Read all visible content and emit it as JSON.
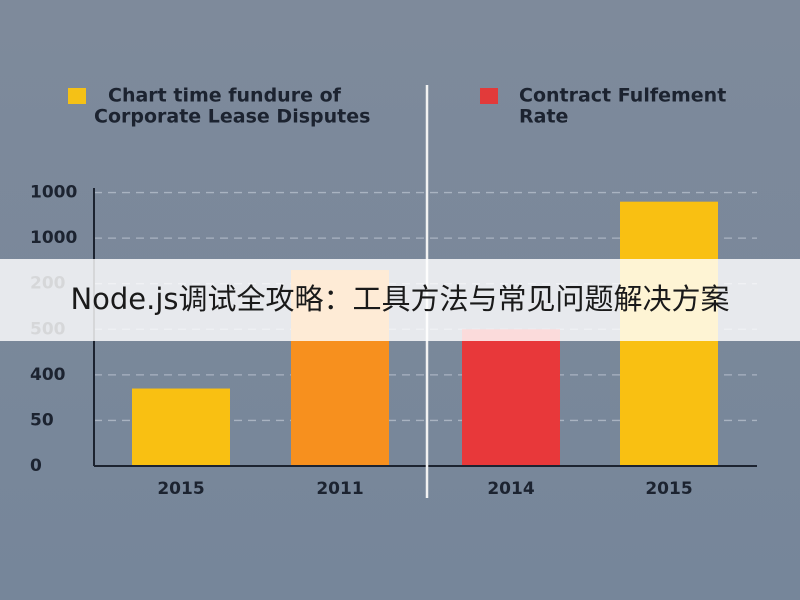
{
  "chart_data": {
    "type": "bar",
    "legend": [
      {
        "color": "#f5c116",
        "lines": [
          "Chart time fundure of",
          "Corporate Lease Disputes"
        ]
      },
      {
        "color": "#e23a3a",
        "lines": [
          "Contract Fulfement",
          "Rate"
        ]
      }
    ],
    "categories": [
      "2015",
      "2011",
      "2014",
      "2015"
    ],
    "values": [
      1.7,
      4.3,
      3.0,
      5.8
    ],
    "colors": [
      "#f9c012",
      "#f7901e",
      "#e8383a",
      "#f9c012"
    ],
    "ylim": [
      0,
      6.1
    ],
    "yticks": [
      {
        "value": 0,
        "label": "0"
      },
      {
        "value": 1,
        "label": "50"
      },
      {
        "value": 2,
        "label": "400"
      },
      {
        "value": 3,
        "label": "500"
      },
      {
        "value": 4,
        "label": "200"
      },
      {
        "value": 5,
        "label": "1000"
      },
      {
        "value": 6,
        "label": "1000"
      }
    ],
    "grid": true,
    "banner": "Node.js调试全攻略：工具方法与常见问题解决方案"
  }
}
